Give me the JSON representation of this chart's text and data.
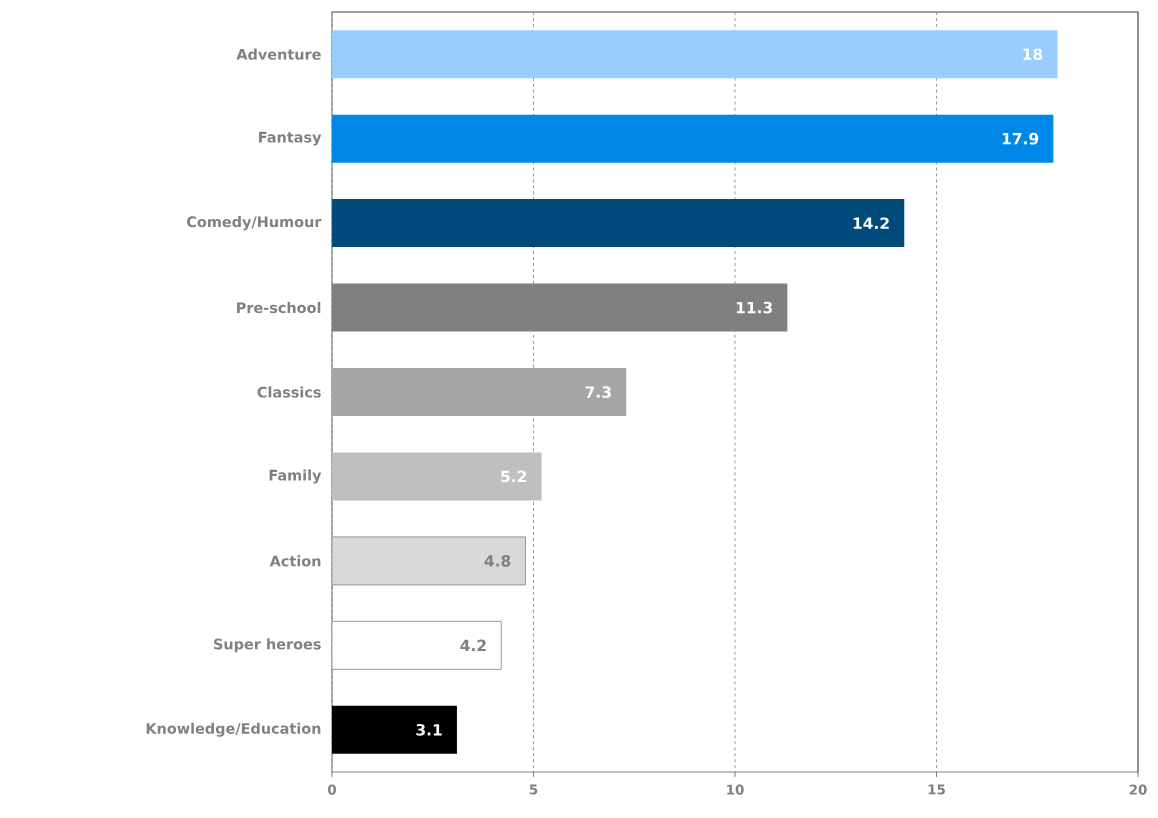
{
  "chart_data": {
    "type": "bar",
    "orientation": "horizontal",
    "categories": [
      "Adventure",
      "Fantasy",
      "Comedy/Humour",
      "Pre-school",
      "Classics",
      "Family",
      "Action",
      "Super heroes",
      "Knowledge/Education"
    ],
    "values": [
      18,
      17.9,
      14.2,
      11.3,
      7.3,
      5.2,
      4.8,
      4.2,
      3.1
    ],
    "colors": [
      "#99ccff",
      "#0088e8",
      "#004a7c",
      "#808080",
      "#a6a6a6",
      "#bfbfbf",
      "#d9d9d9",
      "#ffffff",
      "#000000"
    ],
    "xlim": [
      0,
      20
    ],
    "xticks": [
      0,
      5,
      10,
      15,
      20
    ],
    "grid": "x",
    "data_labels": true
  }
}
